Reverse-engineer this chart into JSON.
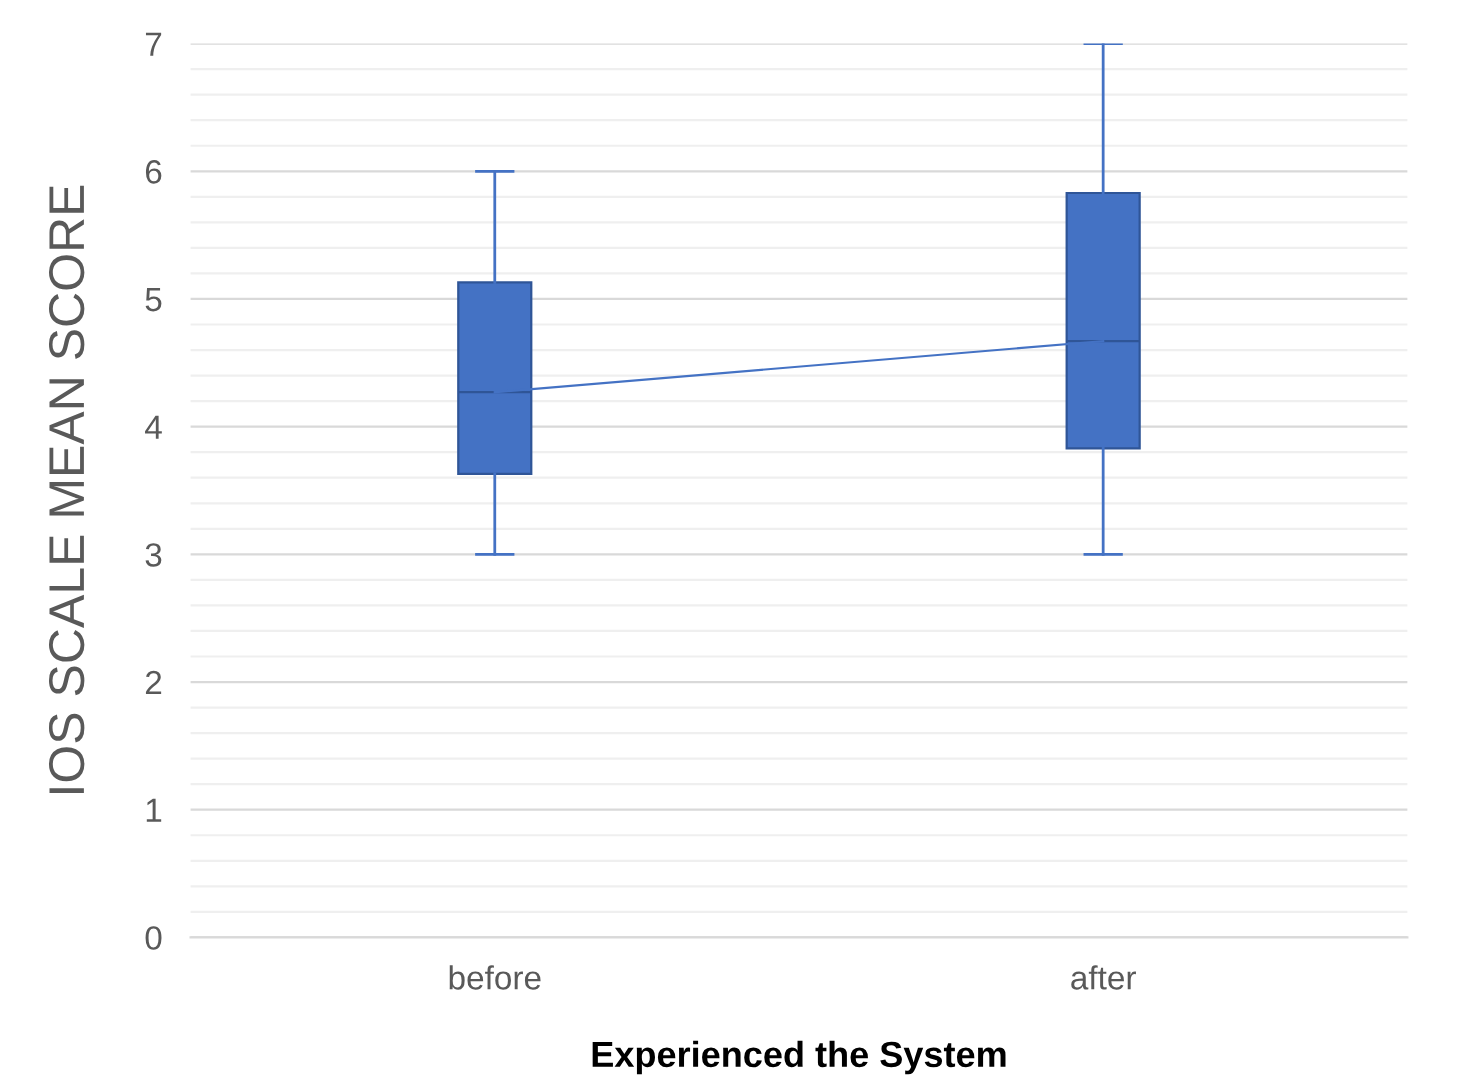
{
  "chart_data": {
    "type": "box",
    "xlabel": "Experienced the System",
    "ylabel": "IOS SCALE MEAN SCORE",
    "categories": [
      "before",
      "after"
    ],
    "series": [
      {
        "type": "box",
        "color": "#4472c4",
        "boxes": [
          {
            "low": 3,
            "q1": 3.63,
            "median": 4.27,
            "q3": 5.13,
            "high": 6
          },
          {
            "low": 3,
            "q1": 3.83,
            "median": 4.67,
            "q3": 5.83,
            "high": 7
          }
        ]
      },
      {
        "type": "line",
        "color": "#4472c4",
        "values": [
          4.27,
          4.67
        ]
      }
    ],
    "ylim": [
      0,
      7
    ],
    "yticks": [
      0,
      {
        "value": 0.2,
        "label": null
      },
      {
        "value": 0.4,
        "label": null
      },
      {
        "value": 0.6,
        "label": null
      },
      {
        "value": 0.8,
        "label": null
      },
      1,
      {
        "value": 1.2,
        "label": null
      },
      {
        "value": 1.4,
        "label": null
      },
      {
        "value": 1.6,
        "label": null
      },
      {
        "value": 1.8,
        "label": null
      },
      2,
      {
        "value": 2.2,
        "label": null
      },
      {
        "value": 2.4,
        "label": null
      },
      {
        "value": 2.6,
        "label": null
      },
      {
        "value": 2.8,
        "label": null
      },
      3,
      {
        "value": 3.2,
        "label": null
      },
      {
        "value": 3.4,
        "label": null
      },
      {
        "value": 3.6,
        "label": null
      },
      {
        "value": 3.8,
        "label": null
      },
      4,
      {
        "value": 4.2,
        "label": null
      },
      {
        "value": 4.4,
        "label": null
      },
      {
        "value": 4.6,
        "label": null
      },
      {
        "value": 4.8,
        "label": null
      },
      5,
      {
        "value": 5.2,
        "label": null
      },
      {
        "value": 5.4,
        "label": null
      },
      {
        "value": 5.6,
        "label": null
      },
      {
        "value": 5.8,
        "label": null
      },
      6,
      {
        "value": 6.2,
        "label": null
      },
      {
        "value": 6.4,
        "label": null
      },
      {
        "value": 6.6,
        "label": null
      },
      {
        "value": 6.8,
        "label": null
      },
      7
    ],
    "grid": "y"
  }
}
